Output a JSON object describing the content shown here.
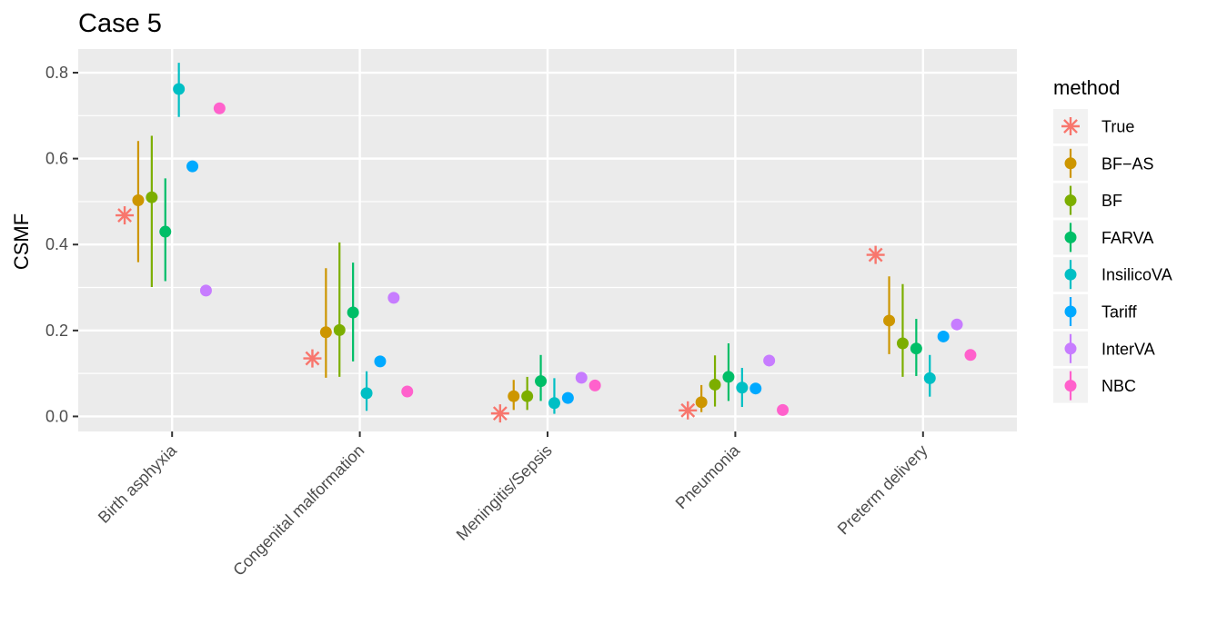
{
  "chart_data": {
    "type": "pointrange",
    "title": "Case 5",
    "xlabel": "",
    "ylabel": "CSMF",
    "ylim": [
      -0.035,
      0.855
    ],
    "yticks": [
      0.0,
      0.2,
      0.4,
      0.6,
      0.8
    ],
    "ytick_labels": [
      "0.0",
      "0.2",
      "0.4",
      "0.6",
      "0.8"
    ],
    "grid": true,
    "legend_title": "method",
    "legend_position": "right",
    "categories": [
      "Birth asphyxia",
      "Congenital malformation",
      "Meningitis/Sepsis",
      "Pneumonia",
      "Preterm delivery"
    ],
    "series": [
      {
        "name": "True",
        "color": "#F8766D",
        "marker": "asterisk",
        "values": [
          0.468,
          0.135,
          0.007,
          0.014,
          0.376
        ]
      },
      {
        "name": "BF−AS",
        "color": "#CD9600",
        "marker": "point",
        "values": [
          0.503,
          0.196,
          0.047,
          0.033,
          0.223
        ],
        "lower": [
          0.359,
          0.09,
          0.015,
          0.01,
          0.145
        ],
        "upper": [
          0.641,
          0.345,
          0.085,
          0.073,
          0.326
        ]
      },
      {
        "name": "BF",
        "color": "#7CAE00",
        "marker": "point",
        "values": [
          0.51,
          0.201,
          0.047,
          0.074,
          0.17
        ],
        "lower": [
          0.301,
          0.092,
          0.015,
          0.023,
          0.092
        ],
        "upper": [
          0.653,
          0.405,
          0.092,
          0.142,
          0.308
        ]
      },
      {
        "name": "FARVA",
        "color": "#00BE67",
        "marker": "point",
        "values": [
          0.43,
          0.242,
          0.082,
          0.092,
          0.158
        ],
        "lower": [
          0.315,
          0.128,
          0.036,
          0.036,
          0.094
        ],
        "upper": [
          0.554,
          0.358,
          0.143,
          0.17,
          0.227
        ]
      },
      {
        "name": "InsilicoVA",
        "color": "#00BFC4",
        "marker": "point",
        "values": [
          0.762,
          0.054,
          0.031,
          0.067,
          0.089
        ],
        "lower": [
          0.697,
          0.013,
          0.006,
          0.022,
          0.046
        ],
        "upper": [
          0.823,
          0.105,
          0.089,
          0.113,
          0.143
        ]
      },
      {
        "name": "Tariff",
        "color": "#00A9FF",
        "marker": "point",
        "values": [
          0.582,
          0.128,
          0.043,
          0.065,
          0.186
        ]
      },
      {
        "name": "InterVA",
        "color": "#C77CFF",
        "marker": "point",
        "values": [
          0.293,
          0.276,
          0.09,
          0.13,
          0.214
        ]
      },
      {
        "name": "NBC",
        "color": "#FF61CC",
        "marker": "point",
        "values": [
          0.717,
          0.058,
          0.072,
          0.015,
          0.143
        ]
      }
    ]
  }
}
